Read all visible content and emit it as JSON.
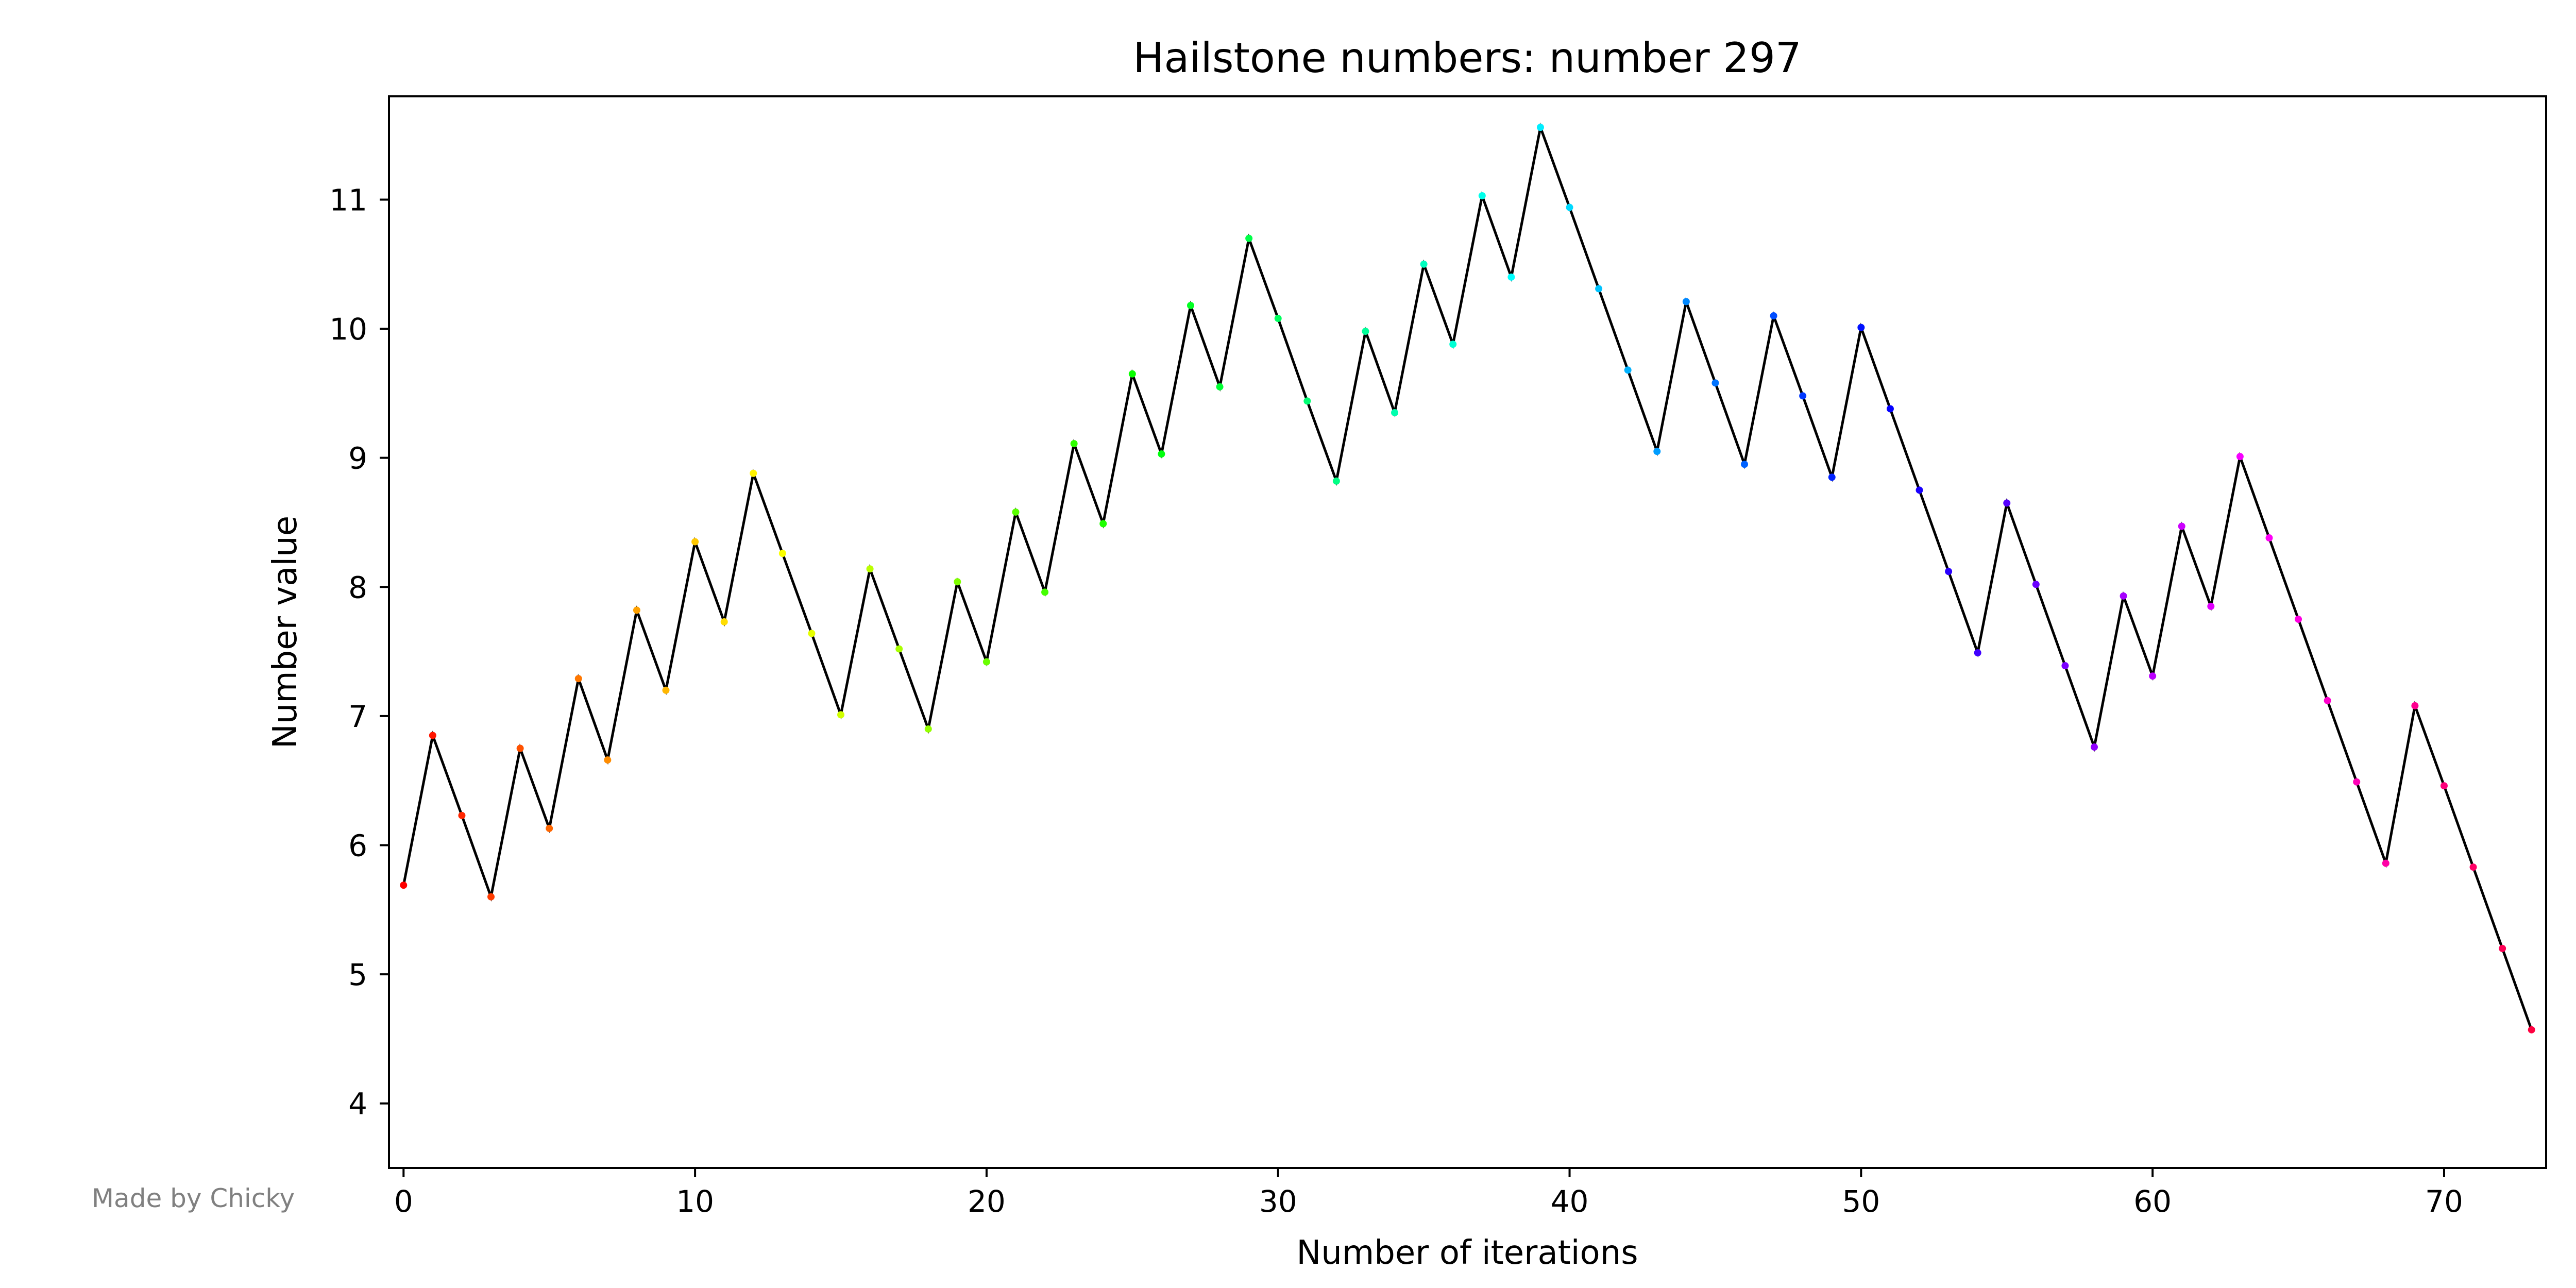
{
  "credit": "Made by Chicky",
  "chart_data": {
    "type": "line",
    "title": "Hailstone numbers: number 297",
    "xlabel": "Number of iterations",
    "ylabel": "Number value",
    "xlim": [
      -0.5,
      73.5
    ],
    "ylim": [
      3.5,
      11.8
    ],
    "xticks": [
      0,
      10,
      20,
      30,
      40,
      50,
      60,
      70
    ],
    "yticks": [
      4,
      5,
      6,
      7,
      8,
      9,
      10,
      11
    ],
    "grid": false,
    "line_color": "#000000",
    "marker_colors": "rainbow gradient by index (red to violet to pink)",
    "x": [
      0,
      1,
      2,
      3,
      4,
      5,
      6,
      7,
      8,
      9,
      10,
      11,
      12,
      13,
      14,
      15,
      16,
      17,
      18,
      19,
      20,
      21,
      22,
      23,
      24,
      25,
      26,
      27,
      28,
      29,
      30,
      31,
      32,
      33,
      34,
      35,
      36,
      37,
      38,
      39,
      40,
      41,
      42,
      43,
      44,
      45,
      46,
      47,
      48,
      49,
      50,
      51,
      52,
      53,
      54,
      55,
      56,
      57,
      58,
      59,
      60,
      61,
      62,
      63,
      64,
      65,
      66,
      67,
      68,
      69,
      70,
      71,
      72,
      73
    ],
    "series": [
      {
        "values": [
          5.69,
          6.85,
          6.23,
          5.6,
          6.75,
          6.13,
          7.29,
          6.66,
          7.82,
          7.2,
          8.35,
          7.73,
          8.88,
          8.26,
          7.64,
          7.01,
          8.14,
          7.52,
          6.9,
          8.04,
          7.42,
          8.58,
          7.96,
          9.11,
          8.49,
          9.65,
          9.03,
          10.18,
          9.55,
          10.7,
          10.08,
          9.44,
          8.82,
          9.98,
          9.35,
          10.5,
          9.88,
          11.03,
          10.4,
          11.56,
          10.94,
          10.31,
          9.68,
          9.05,
          10.21,
          9.58,
          8.95,
          10.1,
          9.48,
          8.85,
          10.01,
          9.38,
          8.75,
          8.12,
          7.49,
          8.65,
          8.02,
          7.39,
          6.76,
          7.93,
          7.31,
          8.47,
          7.85,
          9.01,
          8.38,
          7.75,
          7.12,
          6.49,
          5.86,
          7.08,
          6.46,
          5.83,
          5.2,
          4.57
        ]
      }
    ]
  }
}
